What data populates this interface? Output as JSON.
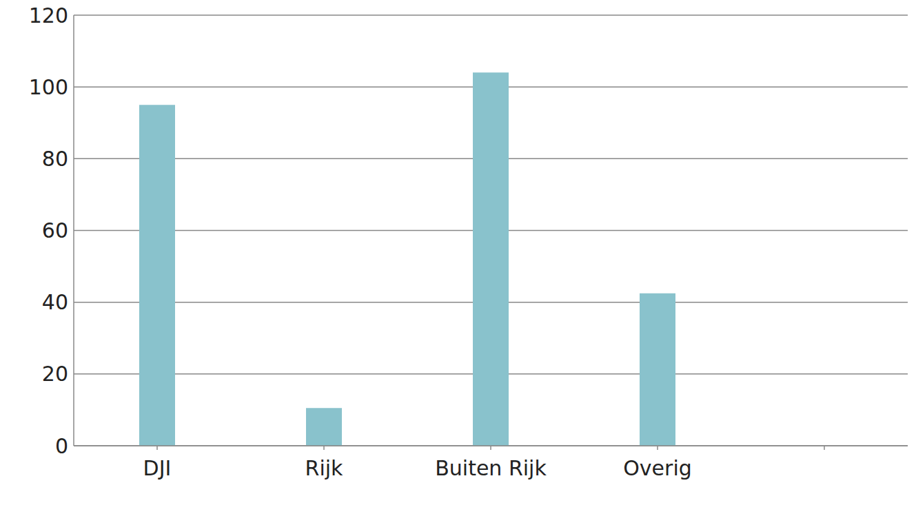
{
  "chart_data": {
    "type": "bar",
    "categories": [
      "DJI",
      "Rijk",
      "Buiten Rijk",
      "Overig",
      null
    ],
    "values": [
      95,
      10.5,
      104,
      42.5,
      null
    ],
    "color": "#89c2cc",
    "ylim": [
      0,
      120
    ],
    "yticks": [
      0,
      20,
      40,
      60,
      80,
      100,
      120
    ],
    "grid": true
  }
}
